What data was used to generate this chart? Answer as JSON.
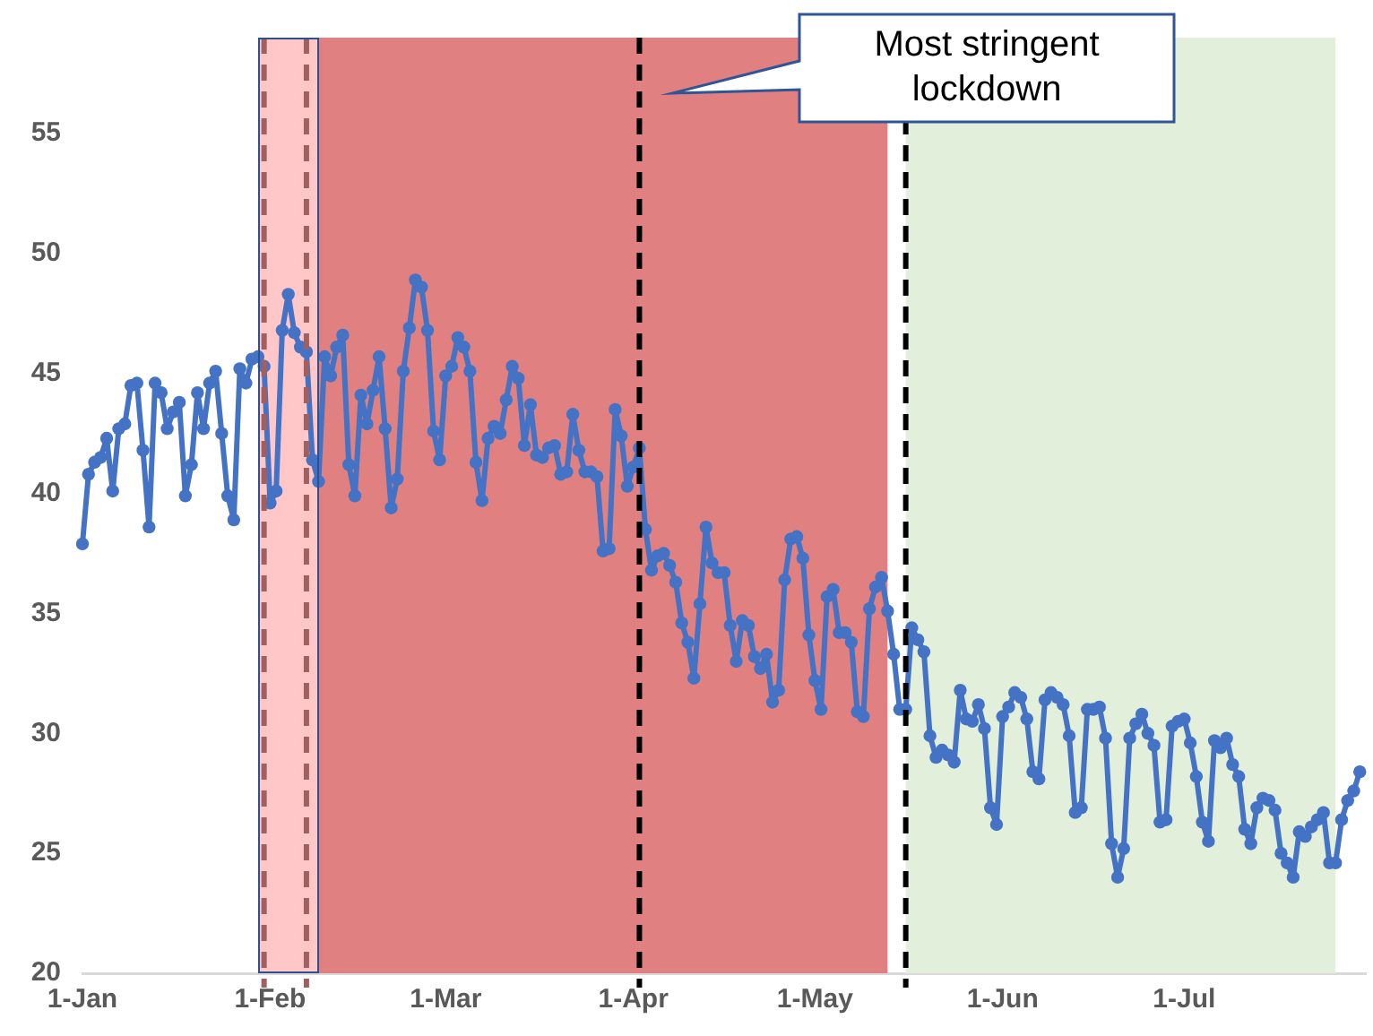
{
  "chart_data": {
    "type": "line",
    "x": [
      "--01-01",
      "--01-02",
      "--01-03",
      "--01-04",
      "--01-05",
      "--01-06",
      "--01-07",
      "--01-08",
      "--01-09",
      "--01-10",
      "--01-11",
      "--01-12",
      "--01-13",
      "--01-14",
      "--01-15",
      "--01-16",
      "--01-17",
      "--01-18",
      "--01-19",
      "--01-20",
      "--01-21",
      "--01-22",
      "--01-23",
      "--01-24",
      "--01-25",
      "--01-26",
      "--01-27",
      "--01-28",
      "--01-29",
      "--01-30",
      "--01-31",
      "--02-01",
      "--02-02",
      "--02-03",
      "--02-04",
      "--02-05",
      "--02-06",
      "--02-07",
      "--02-08",
      "--02-09",
      "--02-10",
      "--02-11",
      "--02-12",
      "--02-13",
      "--02-14",
      "--02-15",
      "--02-16",
      "--02-17",
      "--02-18",
      "--02-19",
      "--02-20",
      "--02-21",
      "--02-22",
      "--02-23",
      "--02-24",
      "--02-25",
      "--02-26",
      "--02-27",
      "--02-28",
      "--02-29",
      "--03-01",
      "--03-02",
      "--03-03",
      "--03-04",
      "--03-05",
      "--03-06",
      "--03-07",
      "--03-08",
      "--03-09",
      "--03-10",
      "--03-11",
      "--03-12",
      "--03-13",
      "--03-14",
      "--03-15",
      "--03-16",
      "--03-17",
      "--03-18",
      "--03-19",
      "--03-20",
      "--03-21",
      "--03-22",
      "--03-23",
      "--03-24",
      "--03-25",
      "--03-26",
      "--03-27",
      "--03-28",
      "--03-29",
      "--03-30",
      "--03-31",
      "--04-01",
      "--04-02",
      "--04-03",
      "--04-04",
      "--04-05",
      "--04-06",
      "--04-07",
      "--04-08",
      "--04-09",
      "--04-10",
      "--04-11",
      "--04-12",
      "--04-13",
      "--04-14",
      "--04-15",
      "--04-16",
      "--04-17",
      "--04-18",
      "--04-19",
      "--04-20",
      "--04-21",
      "--04-22",
      "--04-23",
      "--04-24",
      "--04-25",
      "--04-26",
      "--04-27",
      "--04-28",
      "--04-29",
      "--04-30",
      "--05-01",
      "--05-02",
      "--05-03",
      "--05-04",
      "--05-05",
      "--05-06",
      "--05-07",
      "--05-08",
      "--05-09",
      "--05-10",
      "--05-11",
      "--05-12",
      "--05-13",
      "--05-14",
      "--05-15",
      "--05-16",
      "--05-17",
      "--05-18",
      "--05-19",
      "--05-20",
      "--05-21",
      "--05-22",
      "--05-23",
      "--05-24",
      "--05-25",
      "--05-26",
      "--05-27",
      "--05-28",
      "--05-29",
      "--05-30",
      "--05-31",
      "--06-01",
      "--06-02",
      "--06-03",
      "--06-04",
      "--06-05",
      "--06-06",
      "--06-07",
      "--06-08",
      "--06-09",
      "--06-10",
      "--06-11",
      "--06-12",
      "--06-13",
      "--06-14",
      "--06-15",
      "--06-16",
      "--06-17",
      "--06-18",
      "--06-19",
      "--06-20",
      "--06-21",
      "--06-22",
      "--06-23",
      "--06-24",
      "--06-25",
      "--06-26",
      "--06-27",
      "--06-28",
      "--06-29",
      "--06-30",
      "--07-01",
      "--07-02",
      "--07-03",
      "--07-04",
      "--07-05",
      "--07-06",
      "--07-07",
      "--07-08",
      "--07-09",
      "--07-10",
      "--07-11",
      "--07-12",
      "--07-13",
      "--07-14",
      "--07-15",
      "--07-16",
      "--07-17",
      "--07-18",
      "--07-19",
      "--07-20",
      "--07-21",
      "--07-22",
      "--07-23",
      "--07-24",
      "--07-25",
      "--07-26",
      "--07-27",
      "--07-28",
      "--07-29",
      "--07-30"
    ],
    "series": [
      {
        "color": "#4472c4",
        "values": [
          37.9,
          40.8,
          41.3,
          41.5,
          42.3,
          40.1,
          42.7,
          42.9,
          44.5,
          44.6,
          41.8,
          38.6,
          44.6,
          44.2,
          42.7,
          43.4,
          43.8,
          39.9,
          41.2,
          44.2,
          42.7,
          44.6,
          45.1,
          42.5,
          39.9,
          38.9,
          45.2,
          44.6,
          45.6,
          45.7,
          45.3,
          39.6,
          40.1,
          46.8,
          48.3,
          46.7,
          46.1,
          45.9,
          41.4,
          40.5,
          45.7,
          44.9,
          46.1,
          46.6,
          41.2,
          39.9,
          44.1,
          42.9,
          44.3,
          45.7,
          42.7,
          39.4,
          40.6,
          45.1,
          46.9,
          48.9,
          48.6,
          46.8,
          42.6,
          41.4,
          44.9,
          45.3,
          46.5,
          46.1,
          45.1,
          41.3,
          39.7,
          42.3,
          42.8,
          42.5,
          43.9,
          45.3,
          44.8,
          42.0,
          43.7,
          41.6,
          41.5,
          41.9,
          42.0,
          40.8,
          40.9,
          43.3,
          41.8,
          40.9,
          40.9,
          40.7,
          37.6,
          37.7,
          43.5,
          42.4,
          40.3,
          41.1,
          41.9,
          38.5,
          36.8,
          37.4,
          37.5,
          37.0,
          36.3,
          34.6,
          33.8,
          32.3,
          35.4,
          38.6,
          37.1,
          36.7,
          36.7,
          34.5,
          33.0,
          34.7,
          34.5,
          33.2,
          32.7,
          33.3,
          31.3,
          31.8,
          36.4,
          38.1,
          38.2,
          37.3,
          34.1,
          32.2,
          31.0,
          35.7,
          36.0,
          34.2,
          34.2,
          33.8,
          30.9,
          30.7,
          35.2,
          36.1,
          36.5,
          35.1,
          33.3,
          31.0,
          31.0,
          34.4,
          33.9,
          33.4,
          29.9,
          29.0,
          29.3,
          29.1,
          28.8,
          31.8,
          30.6,
          30.5,
          31.2,
          30.2,
          26.9,
          26.2,
          30.7,
          31.1,
          31.7,
          31.5,
          30.6,
          28.4,
          28.1,
          31.4,
          31.7,
          31.5,
          31.2,
          29.9,
          26.7,
          26.9,
          31.0,
          31.0,
          31.1,
          29.8,
          25.4,
          24.0,
          25.2,
          29.8,
          30.4,
          30.8,
          30.0,
          29.5,
          26.3,
          26.4,
          30.3,
          30.5,
          30.6,
          29.6,
          28.2,
          26.3,
          25.5,
          29.7,
          29.4,
          29.8,
          28.7,
          28.2,
          26.0,
          25.4,
          26.9,
          27.3,
          27.2,
          26.8,
          25.0,
          24.6,
          24.0,
          25.9,
          25.7,
          26.1,
          26.4,
          26.7,
          24.6,
          24.6,
          26.4,
          27.2,
          27.6,
          28.4
        ]
      }
    ],
    "xlim": [
      "--01-01",
      "--07-31"
    ],
    "xticks": [
      {
        "value": "--01-01",
        "label": "1-Jan"
      },
      {
        "value": "--02-01",
        "label": "1-Feb"
      },
      {
        "value": "--03-01",
        "label": "1-Mar"
      },
      {
        "value": "--04-01",
        "label": "1-Apr"
      },
      {
        "value": "--05-01",
        "label": "1-May"
      },
      {
        "value": "--06-01",
        "label": "1-Jun"
      },
      {
        "value": "--07-01",
        "label": "1-Jul"
      }
    ],
    "ylim": [
      20,
      59
    ],
    "yticks": [
      20,
      25,
      30,
      35,
      40,
      45,
      50,
      55
    ],
    "marker": "circle",
    "line_style": "solid",
    "bands": [
      {
        "axis": "x",
        "from": "--01-30",
        "to": "--02-09",
        "color": "#ffc7c7"
      },
      {
        "axis": "x",
        "from": "--02-09",
        "to": "--05-13",
        "color": "#e08080"
      },
      {
        "axis": "x",
        "from": "--05-16",
        "to": "--07-26",
        "color": "#e2efda"
      }
    ],
    "ref_lines": [
      {
        "axis": "x",
        "value": "--01-31",
        "color": "#a06060",
        "line_style": "dashed"
      },
      {
        "axis": "x",
        "value": "--02-07",
        "color": "#a06060",
        "line_style": "dashed"
      },
      {
        "axis": "x",
        "value": "--04-02",
        "color": "#000000",
        "line_style": "dashed"
      },
      {
        "axis": "x",
        "value": "--05-16",
        "color": "#000000",
        "line_style": "dashed"
      }
    ],
    "annotations": [
      "Most stringent lockdown"
    ]
  }
}
